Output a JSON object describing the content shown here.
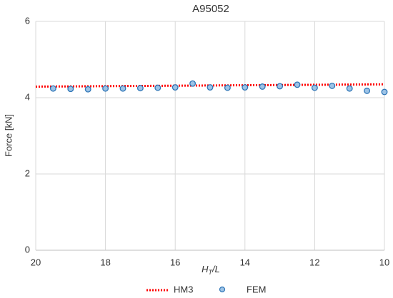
{
  "chart_data": {
    "type": "scatter",
    "title": "A95052",
    "xlabel_parts": [
      "H",
      "T",
      "/L"
    ],
    "ylabel": "Force [kN]",
    "xlim": [
      20,
      10
    ],
    "xticks": [
      20,
      18,
      16,
      14,
      12,
      10
    ],
    "ylim": [
      0,
      6
    ],
    "yticks": [
      0,
      2,
      4,
      6
    ],
    "grid": true,
    "series": [
      {
        "name": "HM3",
        "color": "#ff0000",
        "style": "dotted-line",
        "x": [
          20,
          10
        ],
        "values": [
          4.29,
          4.35
        ]
      },
      {
        "name": "FEM",
        "color": "#9dc3e6",
        "style": "marker",
        "x": [
          19.5,
          19,
          18.5,
          18,
          17.5,
          17,
          16.5,
          16,
          15.5,
          15,
          14.5,
          14,
          13.5,
          13,
          12.5,
          12,
          11.5,
          11,
          10.5,
          10
        ],
        "values": [
          4.24,
          4.23,
          4.22,
          4.24,
          4.24,
          4.25,
          4.26,
          4.27,
          4.37,
          4.27,
          4.26,
          4.27,
          4.29,
          4.3,
          4.34,
          4.26,
          4.31,
          4.24,
          4.18,
          4.15
        ]
      }
    ]
  }
}
